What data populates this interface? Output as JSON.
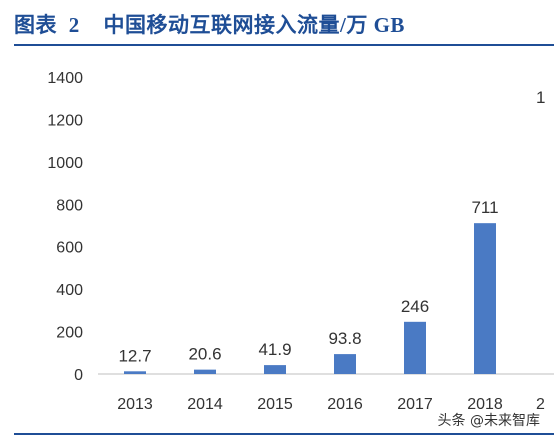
{
  "header": {
    "label": "图表",
    "number": "2",
    "title": "中国移动互联网接入流量/万 GB"
  },
  "watermark": "头条 @未来智库",
  "colors": {
    "bar": "#4a7ac4",
    "title": "#1f4e96",
    "axis": "#bfbfbf"
  },
  "chart_data": {
    "type": "bar",
    "categories": [
      "2013",
      "2014",
      "2015",
      "2016",
      "2017",
      "2018"
    ],
    "values": [
      12.7,
      20.6,
      41.9,
      93.8,
      246,
      711
    ],
    "value_labels": [
      "12.7",
      "20.6",
      "41.9",
      "93.8",
      "246",
      "711"
    ],
    "yticks": [
      "0",
      "200",
      "400",
      "600",
      "800",
      "1000",
      "1200",
      "1400"
    ],
    "ylim": [
      0,
      1400
    ],
    "grid": false,
    "cropped_category_fragment": "2",
    "cropped_label_fragment": "1"
  }
}
